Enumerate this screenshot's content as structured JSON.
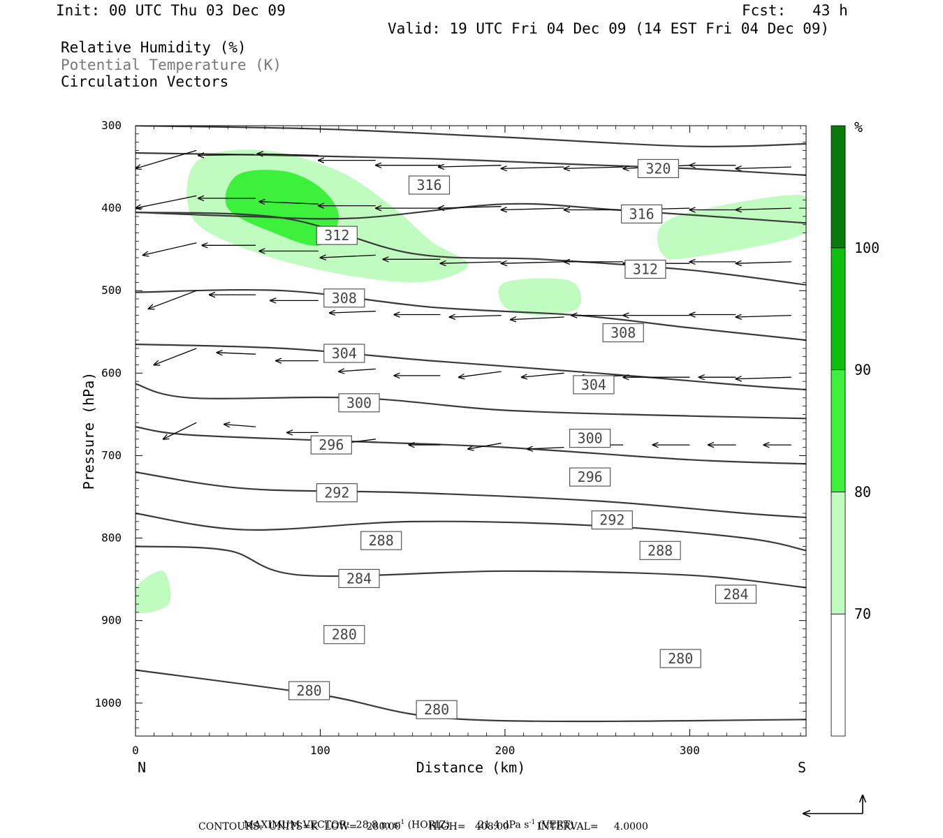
{
  "header": {
    "init": "Init: 00 UTC Thu 03 Dec 09",
    "fcst": "Fcst:   43 h",
    "valid": "Valid: 19 UTC Fri 04 Dec 09 (14 EST Fri 04 Dec 09)"
  },
  "legend": {
    "line1": "Relative Humidity (%)",
    "line2": "Potential Temperature (K)",
    "line3": "Circulation Vectors"
  },
  "chart_data": {
    "type": "contour",
    "xlabel": "Distance (km)",
    "ylabel": "Pressure (hPa)",
    "xlim": [
      0,
      363
    ],
    "ylim": [
      1040,
      300
    ],
    "x_ticks": [
      0,
      100,
      200,
      300
    ],
    "y_ticks": [
      300,
      400,
      500,
      600,
      700,
      800,
      900,
      1000
    ],
    "x_end_labels": {
      "left": "N",
      "right": "S"
    },
    "colorbar": {
      "unit": "%",
      "levels": [
        70,
        80,
        90,
        100
      ],
      "colors": [
        "#ffffff",
        "#c0fcc0",
        "#3cf03c",
        "#10c010",
        "#0a7a0a"
      ]
    },
    "theta_contours": [
      {
        "level": 320,
        "points": [
          [
            0,
            300
          ],
          [
            100,
            304
          ],
          [
            200,
            314
          ],
          [
            300,
            325
          ],
          [
            363,
            322
          ]
        ]
      },
      {
        "level": 320,
        "points": [
          [
            0,
            333
          ],
          [
            80,
            336
          ],
          [
            160,
            340
          ],
          [
            240,
            347
          ],
          [
            300,
            352
          ],
          [
            363,
            360
          ]
        ]
      },
      {
        "level": 316,
        "points": [
          [
            0,
            405
          ],
          [
            60,
            410
          ],
          [
            120,
            412
          ],
          [
            200,
            395
          ],
          [
            260,
            402
          ],
          [
            363,
            418
          ]
        ]
      },
      {
        "level": 312,
        "points": [
          [
            0,
            405
          ],
          [
            80,
            412
          ],
          [
            150,
            455
          ],
          [
            220,
            462
          ],
          [
            300,
            475
          ],
          [
            363,
            493
          ]
        ]
      },
      {
        "level": 308,
        "points": [
          [
            0,
            502
          ],
          [
            80,
            500
          ],
          [
            160,
            520
          ],
          [
            240,
            530
          ],
          [
            300,
            545
          ],
          [
            363,
            560
          ]
        ]
      },
      {
        "level": 304,
        "points": [
          [
            0,
            565
          ],
          [
            80,
            570
          ],
          [
            160,
            585
          ],
          [
            250,
            600
          ],
          [
            330,
            615
          ],
          [
            363,
            620
          ]
        ]
      },
      {
        "level": 300,
        "points": [
          [
            0,
            613
          ],
          [
            30,
            630
          ],
          [
            120,
            630
          ],
          [
            200,
            645
          ],
          [
            300,
            652
          ],
          [
            363,
            655
          ]
        ]
      },
      {
        "level": 296,
        "points": [
          [
            0,
            665
          ],
          [
            30,
            675
          ],
          [
            120,
            683
          ],
          [
            200,
            690
          ],
          [
            300,
            705
          ],
          [
            363,
            710
          ]
        ]
      },
      {
        "level": 292,
        "points": [
          [
            0,
            720
          ],
          [
            60,
            740
          ],
          [
            150,
            745
          ],
          [
            250,
            755
          ],
          [
            330,
            770
          ],
          [
            363,
            775
          ]
        ]
      },
      {
        "level": 288,
        "points": [
          [
            0,
            770
          ],
          [
            60,
            790
          ],
          [
            150,
            780
          ],
          [
            250,
            785
          ],
          [
            330,
            800
          ],
          [
            363,
            815
          ]
        ]
      },
      {
        "level": 284,
        "points": [
          [
            0,
            810
          ],
          [
            50,
            815
          ],
          [
            90,
            845
          ],
          [
            200,
            840
          ],
          [
            300,
            845
          ],
          [
            363,
            860
          ]
        ]
      },
      {
        "level": 280,
        "points": [
          [
            0,
            960
          ],
          [
            100,
            990
          ],
          [
            180,
            1020
          ],
          [
            363,
            1020
          ]
        ]
      }
    ],
    "theta_labels": [
      {
        "text": "320",
        "x": 283,
        "y": 352
      },
      {
        "text": "316",
        "x": 159,
        "y": 372
      },
      {
        "text": "316",
        "x": 274,
        "y": 407
      },
      {
        "text": "312",
        "x": 109,
        "y": 433
      },
      {
        "text": "312",
        "x": 276,
        "y": 474
      },
      {
        "text": "308",
        "x": 113,
        "y": 509
      },
      {
        "text": "308",
        "x": 264,
        "y": 551
      },
      {
        "text": "304",
        "x": 113,
        "y": 576
      },
      {
        "text": "304",
        "x": 248,
        "y": 614
      },
      {
        "text": "300",
        "x": 121,
        "y": 636
      },
      {
        "text": "300",
        "x": 246,
        "y": 679
      },
      {
        "text": "296",
        "x": 106,
        "y": 687
      },
      {
        "text": "296",
        "x": 246,
        "y": 726
      },
      {
        "text": "292",
        "x": 109,
        "y": 745
      },
      {
        "text": "292",
        "x": 258,
        "y": 778
      },
      {
        "text": "288",
        "x": 133,
        "y": 803
      },
      {
        "text": "288",
        "x": 284,
        "y": 815
      },
      {
        "text": "284",
        "x": 121,
        "y": 849
      },
      {
        "text": "284",
        "x": 325,
        "y": 868
      },
      {
        "text": "280",
        "x": 113,
        "y": 917
      },
      {
        "text": "280",
        "x": 295,
        "y": 946
      },
      {
        "text": "280",
        "x": 94,
        "y": 985
      },
      {
        "text": "280",
        "x": 163,
        "y": 1008
      }
    ],
    "rh_regions": [
      {
        "level": 70,
        "points": [
          [
            35,
            340
          ],
          [
            70,
            330
          ],
          [
            110,
            355
          ],
          [
            140,
            400
          ],
          [
            160,
            440
          ],
          [
            180,
            470
          ],
          [
            150,
            490
          ],
          [
            90,
            470
          ],
          [
            40,
            430
          ],
          [
            28,
            390
          ]
        ]
      },
      {
        "level": 80,
        "points": [
          [
            55,
            360
          ],
          [
            80,
            355
          ],
          [
            100,
            375
          ],
          [
            110,
            410
          ],
          [
            100,
            445
          ],
          [
            75,
            430
          ],
          [
            50,
            400
          ]
        ]
      },
      {
        "level": 70,
        "points": [
          [
            200,
            490
          ],
          [
            235,
            488
          ],
          [
            240,
            520
          ],
          [
            220,
            530
          ],
          [
            200,
            520
          ]
        ]
      },
      {
        "level": 70,
        "points": [
          [
            285,
            420
          ],
          [
            310,
            400
          ],
          [
            363,
            385
          ],
          [
            363,
            430
          ],
          [
            300,
            460
          ],
          [
            285,
            455
          ]
        ]
      },
      {
        "level": 70,
        "points": [
          [
            0,
            860
          ],
          [
            15,
            840
          ],
          [
            18,
            880
          ],
          [
            0,
            890
          ]
        ]
      }
    ],
    "vectors_note": "Circulation vectors point generally toward N (leftward) aloft, weakening toward the surface",
    "vectors": [
      [
        0,
        352,
        33,
        330
      ],
      [
        34,
        336,
        64,
        335
      ],
      [
        66,
        334,
        99,
        336
      ],
      [
        99,
        342,
        130,
        342
      ],
      [
        130,
        348,
        165,
        348
      ],
      [
        164,
        350,
        198,
        348
      ],
      [
        198,
        352,
        232,
        350
      ],
      [
        232,
        352,
        264,
        350
      ],
      [
        264,
        352,
        300,
        348
      ],
      [
        300,
        348,
        325,
        348
      ],
      [
        325,
        352,
        355,
        350
      ],
      [
        0,
        400,
        33,
        385
      ],
      [
        34,
        388,
        65,
        388
      ],
      [
        67,
        392,
        99,
        395
      ],
      [
        99,
        397,
        130,
        397
      ],
      [
        130,
        400,
        165,
        400
      ],
      [
        164,
        400,
        198,
        398
      ],
      [
        198,
        402,
        232,
        400
      ],
      [
        232,
        402,
        264,
        402
      ],
      [
        264,
        402,
        300,
        400
      ],
      [
        300,
        402,
        325,
        402
      ],
      [
        325,
        402,
        355,
        400
      ],
      [
        4,
        457,
        33,
        442
      ],
      [
        36,
        445,
        65,
        445
      ],
      [
        67,
        452,
        99,
        452
      ],
      [
        100,
        460,
        130,
        457
      ],
      [
        134,
        462,
        165,
        462
      ],
      [
        165,
        467,
        198,
        465
      ],
      [
        198,
        467,
        232,
        465
      ],
      [
        232,
        465,
        264,
        465
      ],
      [
        264,
        467,
        300,
        467
      ],
      [
        300,
        465,
        325,
        465
      ],
      [
        325,
        467,
        355,
        465
      ],
      [
        7,
        522,
        33,
        500
      ],
      [
        40,
        505,
        65,
        505
      ],
      [
        73,
        512,
        99,
        512
      ],
      [
        105,
        527,
        130,
        525
      ],
      [
        140,
        529,
        165,
        529
      ],
      [
        170,
        532,
        198,
        530
      ],
      [
        203,
        535,
        232,
        532
      ],
      [
        236,
        530,
        264,
        530
      ],
      [
        264,
        530,
        300,
        530
      ],
      [
        300,
        529,
        325,
        529
      ],
      [
        325,
        532,
        355,
        530
      ],
      [
        10,
        590,
        33,
        570
      ],
      [
        44,
        575,
        65,
        577
      ],
      [
        76,
        585,
        99,
        585
      ],
      [
        110,
        598,
        130,
        595
      ],
      [
        140,
        603,
        165,
        603
      ],
      [
        175,
        605,
        198,
        598
      ],
      [
        209,
        605,
        232,
        600
      ],
      [
        240,
        605,
        264,
        603
      ],
      [
        264,
        605,
        300,
        605
      ],
      [
        305,
        605,
        325,
        605
      ],
      [
        325,
        607,
        355,
        605
      ],
      [
        15,
        680,
        33,
        660
      ],
      [
        48,
        662,
        65,
        665
      ],
      [
        82,
        672,
        99,
        672
      ],
      [
        113,
        685,
        130,
        680
      ],
      [
        148,
        687,
        165,
        687
      ],
      [
        180,
        692,
        198,
        685
      ],
      [
        212,
        692,
        232,
        690
      ],
      [
        245,
        687,
        264,
        687
      ],
      [
        280,
        687,
        300,
        687
      ],
      [
        310,
        687,
        325,
        687
      ],
      [
        340,
        687,
        355,
        687
      ]
    ]
  },
  "color_scale_labels": [
    "%",
    "100",
    "90",
    "80",
    "70"
  ],
  "footer": {
    "max_vector_label": "MAXIMUM VECTOR:",
    "horiz": "28.8 m s",
    "horiz_unit": "(HORIZ)",
    "vert": "21.4 dPa s",
    "vert_unit": "(VERT)",
    "exponent": "-1",
    "contours": "CONTOURS:  UNITS=K  LOW=   280.00         HIGH=   408.00         INTERVAL=     4.0000"
  }
}
